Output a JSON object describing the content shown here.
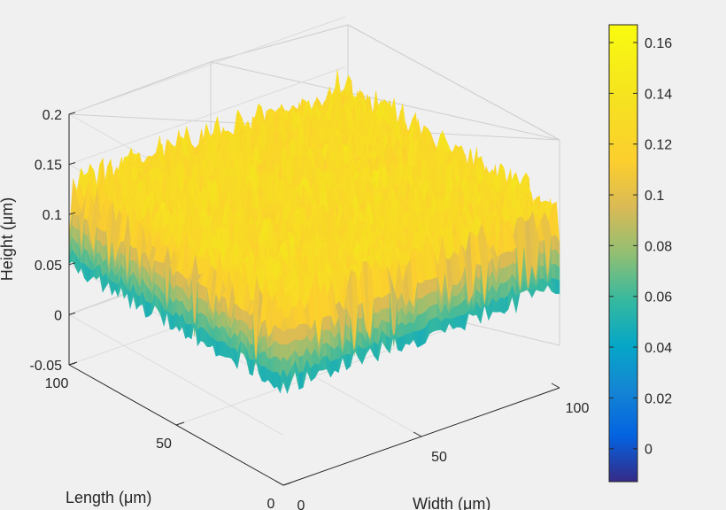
{
  "chart_data": {
    "type": "surface",
    "title": "",
    "xlabel": "Width (μm)",
    "ylabel": "Length (μm)",
    "zlabel": "Height (μm)",
    "xlim": [
      0,
      100
    ],
    "ylim": [
      0,
      100
    ],
    "zlim": [
      -0.05,
      0.2
    ],
    "x_ticks": [
      0,
      50,
      100
    ],
    "x_tick_labels": [
      "0",
      "50",
      "100"
    ],
    "y_ticks": [
      0,
      50,
      100
    ],
    "y_tick_labels": [
      "0",
      "50",
      "100"
    ],
    "z_ticks": [
      -0.05,
      0,
      0.05,
      0.1,
      0.15,
      0.2
    ],
    "z_tick_labels": [
      "-0.05",
      "0",
      "0.05",
      "0.1",
      "0.15",
      "0.2"
    ],
    "surface": {
      "description": "rough surface",
      "mean_height": 0.125,
      "peak_height": 0.165,
      "valley_height": 0.03,
      "grid_size": 70
    },
    "colorbar": {
      "colormap": "parula",
      "range": [
        -0.013,
        0.167
      ],
      "ticks": [
        0,
        0.02,
        0.04,
        0.06,
        0.08,
        0.1,
        0.12,
        0.14,
        0.16
      ],
      "tick_labels": [
        "0",
        "0.02",
        "0.04",
        "0.06",
        "0.08",
        "0.1",
        "0.12",
        "0.14",
        "0.16"
      ]
    }
  }
}
